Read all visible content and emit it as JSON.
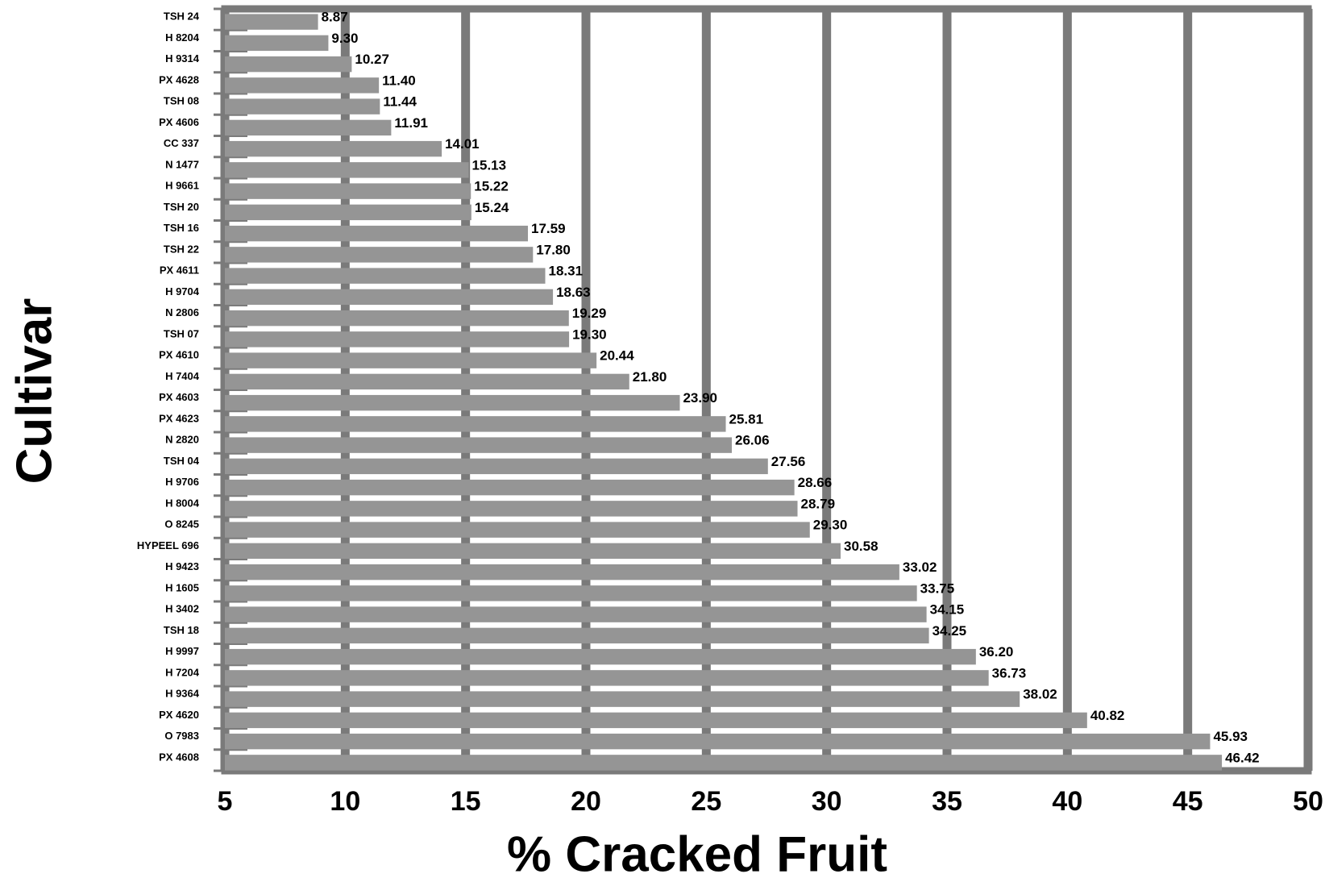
{
  "chart_data": {
    "type": "barh",
    "x_label": "% Cracked Fruit",
    "y_label": "Cultivar",
    "categories": [
      "TSH 24",
      "H 8204",
      "H 9314",
      "PX 4628",
      "TSH 08",
      "PX 4606",
      "CC 337",
      "N 1477",
      "H 9661",
      "TSH 20",
      "TSH 16",
      "TSH 22",
      "PX 4611",
      "H 9704",
      "N 2806",
      "TSH 07",
      "PX 4610",
      "H 7404",
      "PX 4603",
      "PX 4623",
      "N 2820",
      "TSH 04",
      "H 9706",
      "H 8004",
      "O 8245",
      "HYPEEL 696",
      "H 9423",
      "H 1605",
      "H 3402",
      "TSH 18",
      "H 9997",
      "H 7204",
      "H 9364",
      "PX 4620",
      "O 7983",
      "PX 4608"
    ],
    "values": [
      8.87,
      9.3,
      10.27,
      11.4,
      11.44,
      11.91,
      14.01,
      15.13,
      15.22,
      15.24,
      17.59,
      17.8,
      18.31,
      18.63,
      19.29,
      19.3,
      20.44,
      21.8,
      23.9,
      25.81,
      26.06,
      27.56,
      28.66,
      28.79,
      29.3,
      30.58,
      33.02,
      33.75,
      34.15,
      34.25,
      36.2,
      36.73,
      38.02,
      40.82,
      45.93,
      46.42
    ],
    "value_labels": [
      "8.87",
      "9.30",
      "10.27",
      "11.40",
      "11.44",
      "11.91",
      "14.01",
      "15.13",
      "15.22",
      "15.24",
      "17.59",
      "17.80",
      "18.31",
      "18.63",
      "19.29",
      "19.30",
      "20.44",
      "21.80",
      "23.90",
      "25.81",
      "26.06",
      "27.56",
      "28.66",
      "28.79",
      "29.30",
      "30.58",
      "33.02",
      "33.75",
      "34.15",
      "34.25",
      "36.20",
      "36.73",
      "38.02",
      "40.82",
      "45.93",
      "46.42"
    ],
    "color": "#959595",
    "grid_color": "#7a7a7a",
    "xlim": [
      5,
      50
    ],
    "xticks": [
      5,
      10,
      15,
      20,
      25,
      30,
      35,
      40,
      45,
      50
    ],
    "grid": true
  }
}
